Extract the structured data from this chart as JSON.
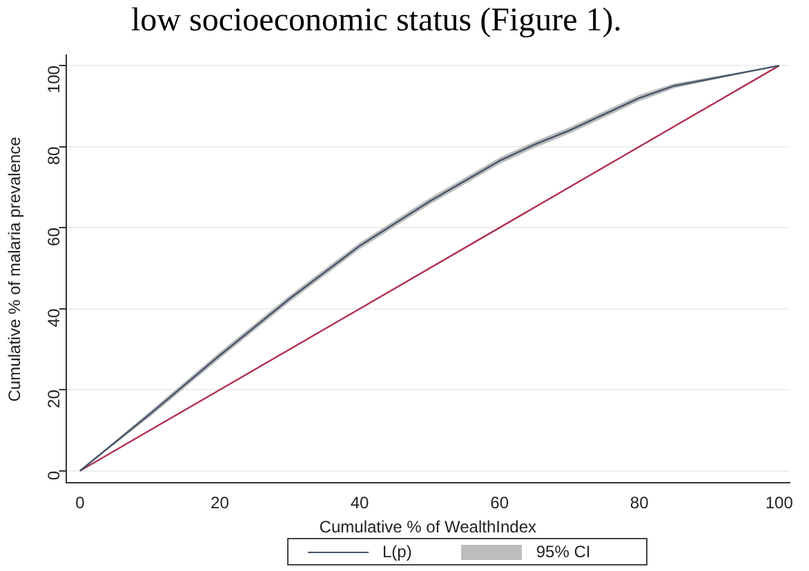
{
  "chart_data": {
    "type": "line",
    "xlabel": "Cumulative % of WealthIndex",
    "ylabel": "Cumulative % of malaria prevalence",
    "annotations": [
      "low socioeconomic status (Figure 1).",
      "95% CI"
    ],
    "series": [
      {
        "name": "L(p)",
        "color": "#44546a",
        "x": [
          0,
          10,
          20,
          30,
          40,
          50,
          60,
          65,
          70,
          80,
          85,
          100
        ],
        "values": [
          0,
          14,
          28.5,
          42.5,
          55.5,
          66.5,
          76.5,
          80.5,
          84,
          92,
          95,
          100
        ],
        "lower": [
          0,
          13.3,
          27.7,
          41.7,
          54.7,
          65.7,
          75.7,
          79.7,
          83.2,
          91.2,
          94.4,
          100
        ],
        "upper": [
          0,
          14.7,
          29.3,
          43.3,
          56.3,
          67.3,
          77.3,
          81.3,
          84.8,
          92.8,
          95.6,
          100
        ]
      },
      {
        "color": "#b03050",
        "x": [
          0,
          100
        ],
        "values": [
          0,
          100
        ]
      }
    ],
    "xlim": [
      -2,
      101.5
    ],
    "ylim": [
      -3,
      102.5
    ],
    "xticks": [
      0,
      20,
      40,
      60,
      80,
      100
    ],
    "yticks": [
      0,
      20,
      40,
      60,
      80,
      100
    ],
    "grid": "y",
    "legend": "bottom",
    "marker": "none",
    "line_style": "solid"
  }
}
